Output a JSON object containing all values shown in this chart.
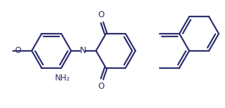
{
  "background_color": "#ffffff",
  "line_color": "#2c2c6e",
  "line_width": 1.6,
  "label_fontsize": 8.5,
  "text_color": "#2c2c6e",
  "xlim": [
    0,
    10
  ],
  "ylim": [
    0,
    5
  ]
}
